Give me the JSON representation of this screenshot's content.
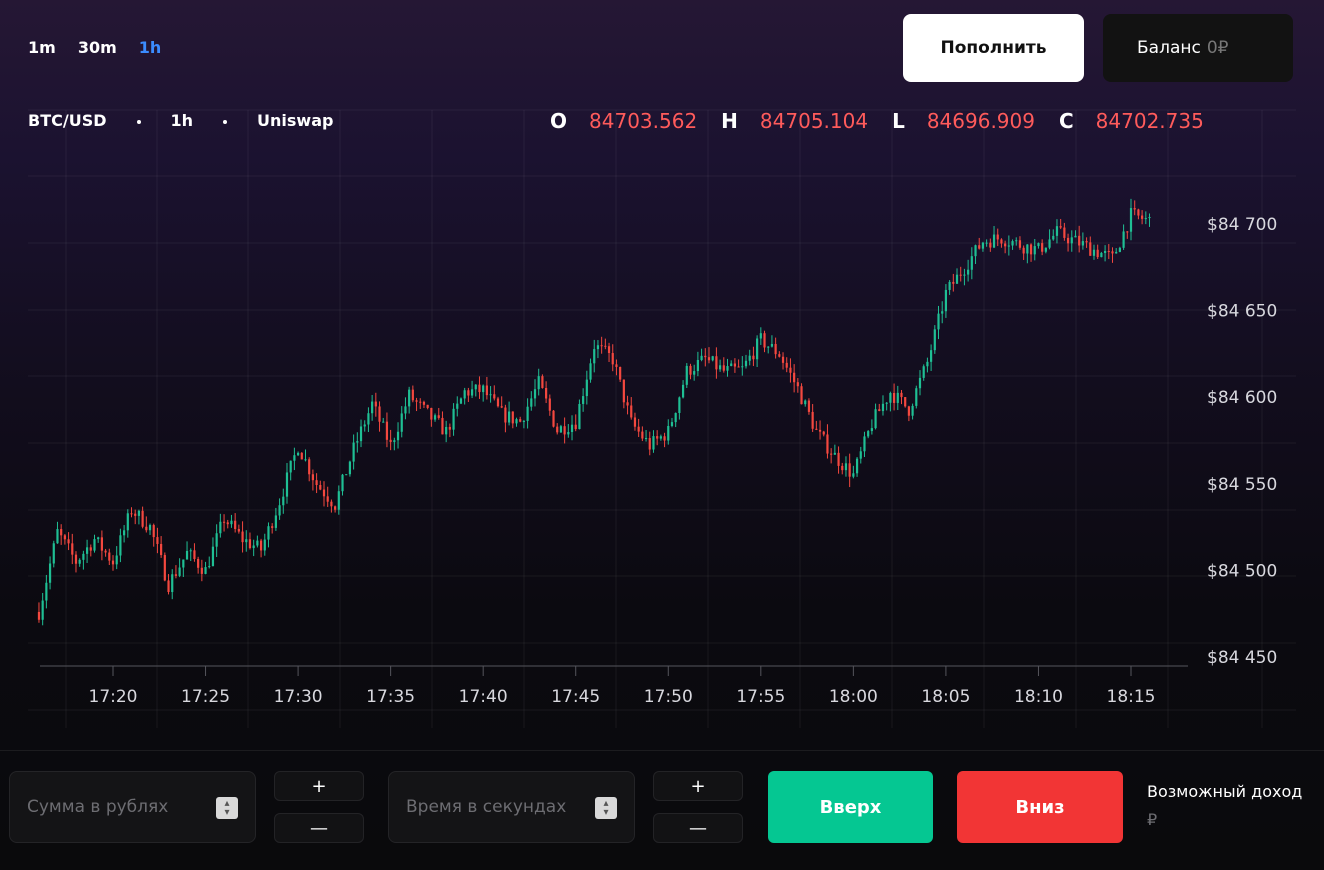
{
  "timeframes": [
    {
      "label": "1m",
      "active": false
    },
    {
      "label": "30m",
      "active": false
    },
    {
      "label": "1h",
      "active": true
    }
  ],
  "header": {
    "deposit_label": "Пополнить",
    "balance_label": "Баланс",
    "balance_value": "0₽"
  },
  "info": {
    "pair": "BTC/USD",
    "interval": "1h",
    "exchange": "Uniswap"
  },
  "ohlc": {
    "open_label": "O",
    "open": "84703.562",
    "high_label": "H",
    "high": "84705.104",
    "low_label": "L",
    "low": "84696.909",
    "close_label": "C",
    "close": "84702.735"
  },
  "controls": {
    "amount_placeholder": "Сумма в рублях",
    "time_placeholder": "Время в секундах",
    "plus": "+",
    "minus": "—",
    "up_label": "Вверх",
    "down_label": "Вниз",
    "income_label": "Возможный доход",
    "income_currency": "₽"
  },
  "colors": {
    "up": "#1fbf94",
    "down": "#f4483f",
    "accent": "#3b8cff"
  },
  "chart_data": {
    "type": "candlestick",
    "y_ticks": [
      "$84 700",
      "$84 650",
      "$84 600",
      "$84 550",
      "$84 500",
      "$84 450"
    ],
    "y_tick_values": [
      84700,
      84650,
      84600,
      84550,
      84500,
      84450
    ],
    "x_ticks": [
      "17:20",
      "17:25",
      "17:30",
      "17:35",
      "17:40",
      "17:45",
      "17:50",
      "17:55",
      "18:00",
      "18:05",
      "18:10",
      "18:15"
    ],
    "x_range": [
      "17:16",
      "18:16"
    ],
    "y_range": [
      84450,
      84700
    ],
    "close_path": [
      [
        "17:16",
        84476
      ],
      [
        "17:17",
        84522
      ],
      [
        "17:18",
        84505
      ],
      [
        "17:19",
        84518
      ],
      [
        "17:20",
        84505
      ],
      [
        "17:21",
        84535
      ],
      [
        "17:22",
        84525
      ],
      [
        "17:23",
        84492
      ],
      [
        "17:24",
        84510
      ],
      [
        "17:25",
        84500
      ],
      [
        "17:26",
        84530
      ],
      [
        "17:27",
        84518
      ],
      [
        "17:28",
        84512
      ],
      [
        "17:29",
        84540
      ],
      [
        "17:30",
        84572
      ],
      [
        "17:31",
        84550
      ],
      [
        "17:32",
        84538
      ],
      [
        "17:33",
        84570
      ],
      [
        "17:34",
        84596
      ],
      [
        "17:35",
        84572
      ],
      [
        "17:36",
        84601
      ],
      [
        "17:37",
        84590
      ],
      [
        "17:38",
        84580
      ],
      [
        "17:39",
        84603
      ],
      [
        "17:40",
        84604
      ],
      [
        "17:41",
        84590
      ],
      [
        "17:42",
        84586
      ],
      [
        "17:43",
        84608
      ],
      [
        "17:44",
        84581
      ],
      [
        "17:45",
        84586
      ],
      [
        "17:46",
        84630
      ],
      [
        "17:47",
        84622
      ],
      [
        "17:48",
        84585
      ],
      [
        "17:49",
        84572
      ],
      [
        "17:50",
        84580
      ],
      [
        "17:51",
        84615
      ],
      [
        "17:52",
        84622
      ],
      [
        "17:53",
        84615
      ],
      [
        "17:54",
        84616
      ],
      [
        "17:55",
        84633
      ],
      [
        "17:56",
        84625
      ],
      [
        "17:57",
        84605
      ],
      [
        "17:58",
        84580
      ],
      [
        "17:59",
        84566
      ],
      [
        "18:00",
        84555
      ],
      [
        "18:01",
        84585
      ],
      [
        "18:02",
        84603
      ],
      [
        "18:03",
        84593
      ],
      [
        "18:04",
        84620
      ],
      [
        "18:05",
        84660
      ],
      [
        "18:06",
        84675
      ],
      [
        "18:07",
        84690
      ],
      [
        "18:08",
        84692
      ],
      [
        "18:09",
        84688
      ],
      [
        "18:10",
        84685
      ],
      [
        "18:11",
        84695
      ],
      [
        "18:12",
        84690
      ],
      [
        "18:13",
        84685
      ],
      [
        "18:14",
        84680
      ],
      [
        "18:15",
        84705
      ],
      [
        "18:16",
        84702
      ]
    ]
  }
}
